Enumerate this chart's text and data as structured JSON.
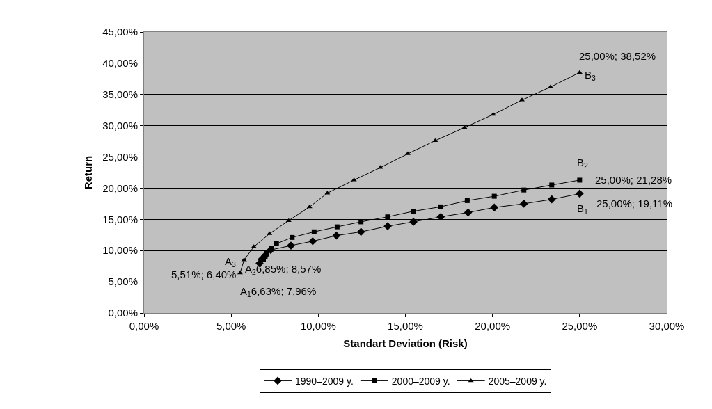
{
  "chart_data": {
    "type": "line",
    "xlabel": "Standart Deviation (Risk)",
    "ylabel": "Return",
    "xlim": [
      0,
      30
    ],
    "ylim": [
      0,
      45
    ],
    "xticks": [
      {
        "value": 0,
        "label": "0,00%"
      },
      {
        "value": 5,
        "label": "5,00%"
      },
      {
        "value": 10,
        "label": "10,00%"
      },
      {
        "value": 15,
        "label": "15,00%"
      },
      {
        "value": 20,
        "label": "20,00%"
      },
      {
        "value": 25,
        "label": "25,00%"
      },
      {
        "value": 30,
        "label": "30,00%"
      }
    ],
    "yticks": [
      {
        "value": 0,
        "label": "0,00%"
      },
      {
        "value": 5,
        "label": "5,00%"
      },
      {
        "value": 10,
        "label": "10,00%"
      },
      {
        "value": 15,
        "label": "15,00%"
      },
      {
        "value": 20,
        "label": "20,00%"
      },
      {
        "value": 25,
        "label": "25,00%"
      },
      {
        "value": 30,
        "label": "30,00%"
      },
      {
        "value": 35,
        "label": "35,00%"
      },
      {
        "value": 40,
        "label": "40,00%"
      },
      {
        "value": 45,
        "label": "45,00%"
      }
    ],
    "grid": "y",
    "legend": "bottom",
    "line_style": "solid",
    "series": [
      {
        "name": "1990–2009 y.",
        "color": "#000000",
        "marker": "diamond",
        "x": [
          6.63,
          6.75,
          6.95,
          7.27,
          8.43,
          9.68,
          11.04,
          12.45,
          13.98,
          15.46,
          17.03,
          18.6,
          20.1,
          21.8,
          23.4,
          25
        ],
        "values": [
          7.96,
          8.6,
          9.2,
          10.1,
          10.8,
          11.5,
          12.4,
          13.0,
          13.9,
          14.6,
          15.4,
          16.1,
          16.9,
          17.5,
          18.2,
          19.11
        ]
      },
      {
        "name": "2000–2009 y.",
        "color": "#000000",
        "marker": "square",
        "x": [
          6.85,
          6.95,
          7.05,
          7.3,
          7.6,
          8.5,
          9.76,
          11.08,
          12.45,
          13.98,
          15.46,
          17.0,
          18.55,
          20.1,
          21.8,
          23.4,
          25
        ],
        "values": [
          8.57,
          9.1,
          9.6,
          10.3,
          11.1,
          12.1,
          13.0,
          13.8,
          14.6,
          15.4,
          16.3,
          17.0,
          18.0,
          18.7,
          19.7,
          20.5,
          21.28
        ]
      },
      {
        "name": "2005–2009 y.",
        "color": "#000000",
        "marker": "triangle",
        "x": [
          5.51,
          5.74,
          6.3,
          7.2,
          8.3,
          9.5,
          10.52,
          12.05,
          13.57,
          15.14,
          16.71,
          18.39,
          20.04,
          21.69,
          23.33,
          25
        ],
        "values": [
          6.4,
          8.5,
          10.6,
          12.7,
          14.8,
          17.0,
          19.2,
          21.3,
          23.3,
          25.5,
          27.6,
          29.7,
          31.8,
          34.1,
          36.2,
          38.52
        ]
      }
    ],
    "annotations": [
      {
        "text": "A$_{3}$",
        "x": 5.51,
        "y": 6.4
      },
      {
        "text": "5,51%; 6,40%",
        "x": 5.51,
        "y": 6.4
      },
      {
        "text": "A$_{2}$6,85%; 8,57%",
        "x": 6.85,
        "y": 8.57
      },
      {
        "text": "A$_{1}$6,63%; 7,96%",
        "x": 6.63,
        "y": 7.96
      },
      {
        "text": "25,00%; 38,52%",
        "x": 25,
        "y": 38.52
      },
      {
        "text": "B$_{3}$",
        "x": 25,
        "y": 38.52
      },
      {
        "text": "B$_{2}$",
        "x": 25,
        "y": 21.28
      },
      {
        "text": "25,00%; 21,28%",
        "x": 25,
        "y": 21.28
      },
      {
        "text": "B$_{1}$",
        "x": 25,
        "y": 19.11
      },
      {
        "text": "25,00%; 19,11%",
        "x": 25,
        "y": 19.11
      }
    ]
  }
}
